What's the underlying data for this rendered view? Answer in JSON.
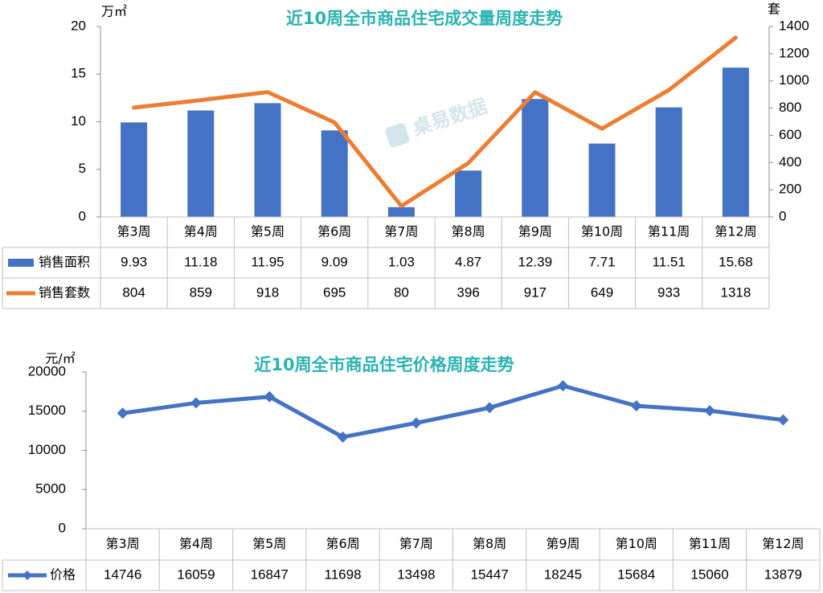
{
  "charts": [
    {
      "id": "c1",
      "title": "近10周全市商品住宅成交量周度走势",
      "left_unit": "万㎡",
      "right_unit": "套",
      "watermark": "桌易数据",
      "chart_data": {
        "type": "bar+line",
        "categories": [
          "第3周",
          "第4周",
          "第5周",
          "第6周",
          "第7周",
          "第8周",
          "第9周",
          "第10周",
          "第11周",
          "第12周"
        ],
        "series": [
          {
            "name": "销售面积",
            "type": "bar",
            "axis": "left",
            "color": "#4472c4",
            "values": [
              9.93,
              11.18,
              11.95,
              9.09,
              1.03,
              4.87,
              12.39,
              7.71,
              11.51,
              15.68
            ]
          },
          {
            "name": "销售套数",
            "type": "line",
            "axis": "right",
            "color": "#ed7d31",
            "values": [
              804,
              859,
              918,
              695,
              80,
              396,
              917,
              649,
              933,
              1318
            ]
          }
        ],
        "ylim_left": [
          0,
          20
        ],
        "yticks_left": [
          0,
          5,
          10,
          15,
          20
        ],
        "ylim_right": [
          0,
          1400
        ],
        "yticks_right": [
          0,
          200,
          400,
          600,
          800,
          1000,
          1200,
          1400
        ]
      }
    },
    {
      "id": "c2",
      "title": "近10周全市商品住宅价格周度走势",
      "left_unit": "元/㎡",
      "chart_data": {
        "type": "line",
        "categories": [
          "第3周",
          "第4周",
          "第5周",
          "第6周",
          "第7周",
          "第8周",
          "第9周",
          "第10周",
          "第11周",
          "第12周"
        ],
        "series": [
          {
            "name": "价格",
            "type": "line",
            "axis": "left",
            "color": "#4472c4",
            "values": [
              14746,
              16059,
              16847,
              11698,
              13498,
              15447,
              18245,
              15684,
              15060,
              13879
            ]
          }
        ],
        "ylim_left": [
          0,
          20000
        ],
        "yticks_left": [
          0,
          5000,
          10000,
          15000,
          20000
        ]
      }
    }
  ]
}
